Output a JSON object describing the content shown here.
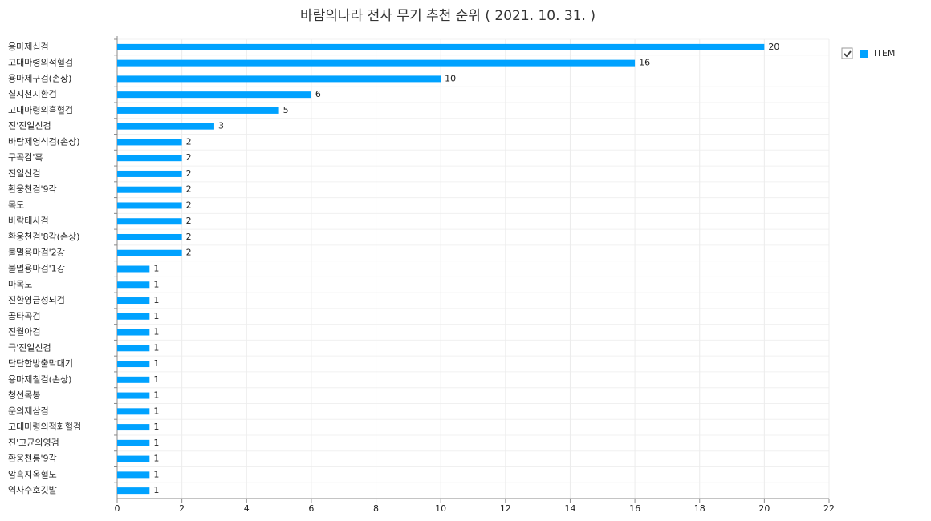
{
  "chart_data": {
    "type": "bar",
    "orientation": "horizontal",
    "title": "바람의나라 전사 무기 추천 순위 ( 2021. 10. 31. )",
    "categories": [
      "용마제십검",
      "고대마령의적혈검",
      "용마제구검(손상)",
      "칠지천지환검",
      "고대마령의흑혈검",
      "진'진일신검",
      "바람제영식검(손상)",
      "구곡검'혹",
      "진일신검",
      "환웅천검'9각",
      "목도",
      "바람태사검",
      "환웅천검'8각(손상)",
      "불멸용마검'2강",
      "불멸용마검'1강",
      "마목도",
      "진환영금성뇌검",
      "곱타곡검",
      "진월아검",
      "극'진일신검",
      "단단한방출막대기",
      "용마제칠검(손상)",
      "청선목봉",
      "운의제삼검",
      "고대마령의적화혈검",
      "진'고균의영검",
      "환웅천룡'9각",
      "암흑지옥혈도",
      "역사수호깃발"
    ],
    "series": [
      {
        "name": "ITEM",
        "color": "#00a2ff",
        "values": [
          20,
          16,
          10,
          6,
          5,
          3,
          2,
          2,
          2,
          2,
          2,
          2,
          2,
          2,
          1,
          1,
          1,
          1,
          1,
          1,
          1,
          1,
          1,
          1,
          1,
          1,
          1,
          1,
          1
        ]
      }
    ],
    "xlim": [
      0,
      22
    ],
    "xticks": [
      0,
      2,
      4,
      6,
      8,
      10,
      12,
      14,
      16,
      18,
      20,
      22
    ],
    "grid": true,
    "legend": "top-right"
  }
}
